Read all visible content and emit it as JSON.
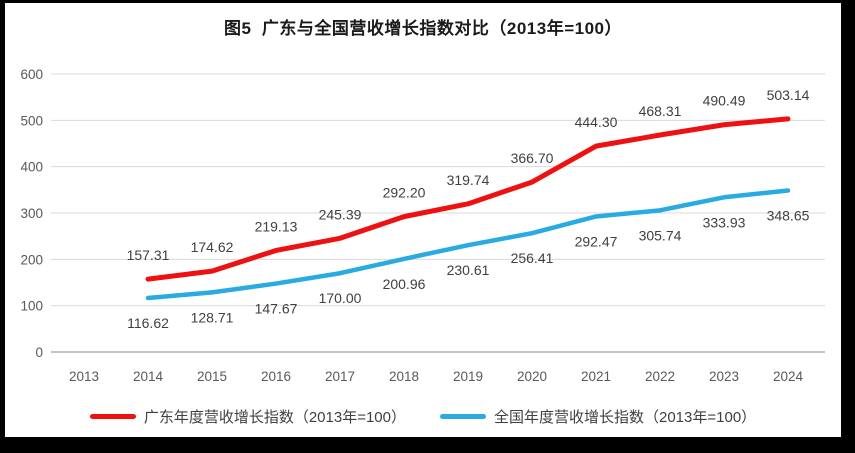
{
  "window": {
    "frame_color": "#000000",
    "background": "#ffffff"
  },
  "chart_data": {
    "type": "line",
    "title": "图5  广东与全国营收增长指数对比（2013年=100）",
    "categories": [
      "2013",
      "2014",
      "2015",
      "2016",
      "2017",
      "2018",
      "2019",
      "2020",
      "2021",
      "2022",
      "2023",
      "2024"
    ],
    "series": [
      {
        "id": "guangdong",
        "name": "广东年度营收增长指数（2013年=100）",
        "color": "#ee1111",
        "label_position": "above",
        "values": [
          null,
          157.31,
          174.62,
          219.13,
          245.39,
          292.2,
          319.74,
          366.7,
          444.3,
          468.31,
          490.49,
          503.14
        ]
      },
      {
        "id": "national",
        "name": "全国年度营收增长指数（2013年=100）",
        "color": "#29abe2",
        "label_position": "below",
        "values": [
          null,
          116.62,
          128.71,
          147.67,
          170.0,
          200.96,
          230.61,
          256.41,
          292.47,
          305.74,
          333.93,
          348.65
        ]
      }
    ],
    "y_axis": {
      "min": 0,
      "max": 600,
      "step": 100
    },
    "x_axis_label": "",
    "y_axis_label": "",
    "grid": true,
    "legend_position": "bottom",
    "colors": {
      "gridline": "#d9d9d9",
      "baseline": "#c3c3c3",
      "tick_label": "#595959",
      "data_label": "#404040",
      "title": "#1a1a1a"
    }
  }
}
